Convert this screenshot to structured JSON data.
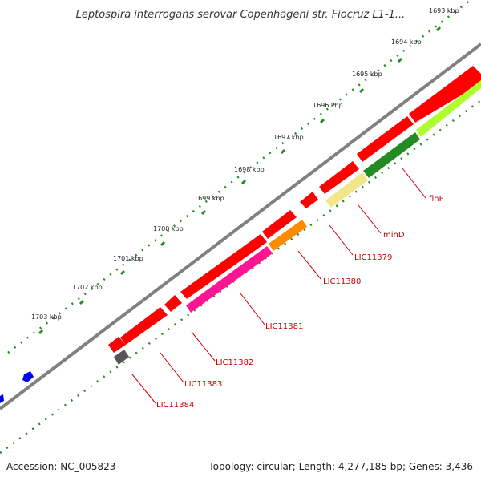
{
  "title": "Leptospira interrogans serovar Copenhageni str. Fiocruz L1-1...",
  "accession": "Accession: NC_005823",
  "summary": "Topology: circular; Length: 4,277,185 bp; Genes: 3,436",
  "ticks": [
    "1693 kbp",
    "1694 kbp",
    "1695 kbp",
    "1696 kbp",
    "1697 kbp",
    "1698 kbp",
    "1699 kbp",
    "1700 kbp",
    "1701 kbp",
    "1702 kbp",
    "1703 kbp"
  ],
  "genes": [
    {
      "label": "flhF",
      "color": "#228b22"
    },
    {
      "label": "minD",
      "color": "#f0e68c"
    },
    {
      "label": "LIC11379",
      "color": "#ff0000"
    },
    {
      "label": "LIC11380",
      "color": "#ff8c00"
    },
    {
      "label": "LIC11381",
      "color": "#ff1493"
    },
    {
      "label": "LIC11382",
      "color": "#ff0000"
    },
    {
      "label": "LIC11383",
      "color": "#ff0000"
    },
    {
      "label": "LIC11384",
      "color": "#555555"
    }
  ],
  "colors": {
    "backbone": "#808080",
    "gene_red": "#ff0000",
    "tick_green": "#228b22",
    "label_red": "#cc0000",
    "other_strand": "#0000ff",
    "yellowgreen": "#adff2f"
  }
}
